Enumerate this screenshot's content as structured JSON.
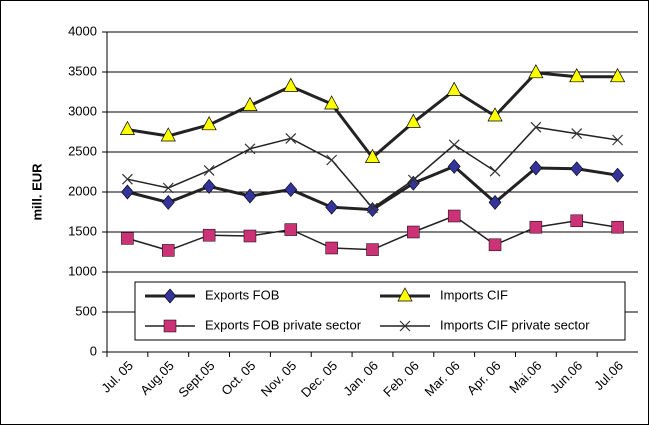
{
  "chart_data": {
    "type": "line",
    "y_label": "mill. EUR",
    "categories": [
      "Jul. 05",
      "Aug.05",
      "Sept.05",
      "Oct. 05",
      "Nov. 05",
      "Dec. 05",
      "Jan. 06",
      "Feb. 06",
      "Mar. 06",
      "Apr. 06",
      "Mai.06",
      "Jun.06",
      "Jul.06"
    ],
    "series": [
      {
        "name": "Exports FOB",
        "color": "#333399",
        "marker": "diamond",
        "values": [
          2000,
          1870,
          2070,
          1950,
          2030,
          1810,
          1780,
          2110,
          2320,
          1870,
          2300,
          2290,
          2210
        ]
      },
      {
        "name": "Imports CIF",
        "color": "#ffff00",
        "marker": "triangle",
        "values": [
          2780,
          2700,
          2840,
          3080,
          3320,
          3100,
          2430,
          2870,
          3270,
          2950,
          3490,
          3440,
          3440
        ]
      },
      {
        "name": "Exports FOB private sector",
        "color": "#cc3377",
        "marker": "square",
        "values": [
          1420,
          1270,
          1460,
          1450,
          1530,
          1300,
          1280,
          1500,
          1700,
          1340,
          1560,
          1640,
          1560
        ]
      },
      {
        "name": "Imports CIF private sector",
        "color": "#333333",
        "marker": "cross",
        "values": [
          2160,
          2050,
          2270,
          2540,
          2670,
          2400,
          1800,
          2150,
          2590,
          2260,
          2810,
          2730,
          2650
        ]
      }
    ],
    "ylim": [
      0,
      4000
    ],
    "yticks": [
      0,
      500,
      1000,
      1500,
      2000,
      2500,
      3000,
      3500,
      4000
    ],
    "grid": true
  }
}
